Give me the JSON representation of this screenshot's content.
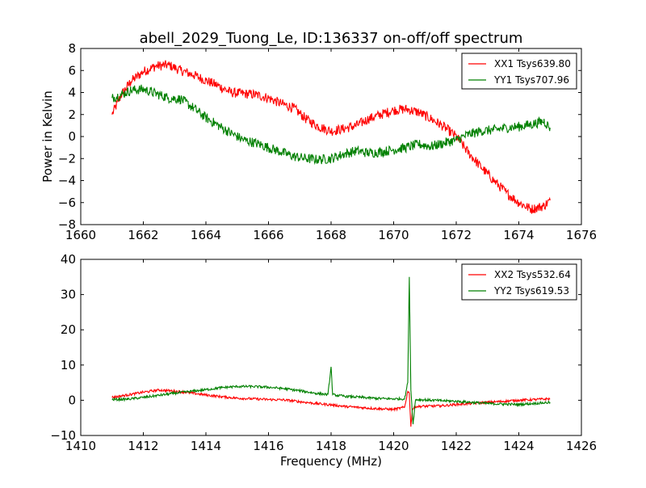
{
  "page": {
    "title": "abell_2029_Tuong_Le, ID:136337 on-off/off spectrum"
  },
  "chart_data": [
    {
      "type": "line",
      "title": "abell_2029_Tuong_Le, ID:136337 on-off/off spectrum",
      "xlabel": "",
      "ylabel": "Power in Kelvin",
      "xlim": [
        1660,
        1676
      ],
      "ylim": [
        -8,
        8
      ],
      "xticks": [
        1660,
        1662,
        1664,
        1666,
        1668,
        1670,
        1672,
        1674,
        1676
      ],
      "yticks": [
        -8,
        -6,
        -4,
        -2,
        0,
        2,
        4,
        6,
        8
      ],
      "grid": false,
      "legend_position": "top-right",
      "series": [
        {
          "name": "XX1 Tsys639.80",
          "color": "#ff0000",
          "x": [
            1661.0,
            1661.3,
            1661.6,
            1662.0,
            1662.4,
            1662.8,
            1663.2,
            1663.6,
            1664.0,
            1664.4,
            1664.8,
            1665.2,
            1665.6,
            1666.0,
            1666.4,
            1666.8,
            1667.2,
            1667.6,
            1668.0,
            1668.4,
            1668.8,
            1669.2,
            1669.6,
            1670.0,
            1670.4,
            1670.8,
            1671.2,
            1671.6,
            1672.0,
            1672.4,
            1672.8,
            1673.2,
            1673.6,
            1674.0,
            1674.4,
            1674.8,
            1675.0
          ],
          "y": [
            2.0,
            3.8,
            5.0,
            5.9,
            6.4,
            6.5,
            6.0,
            5.6,
            5.1,
            4.6,
            4.0,
            3.9,
            3.8,
            3.5,
            3.0,
            2.6,
            1.6,
            0.9,
            0.5,
            0.7,
            1.0,
            1.6,
            2.0,
            2.4,
            2.5,
            2.2,
            1.6,
            0.9,
            0.0,
            -1.5,
            -2.8,
            -4.0,
            -5.1,
            -6.0,
            -6.6,
            -6.3,
            -5.8
          ]
        },
        {
          "name": "YY1 Tsys707.96",
          "color": "#008000",
          "x": [
            1661.0,
            1661.3,
            1661.6,
            1662.0,
            1662.4,
            1662.8,
            1663.2,
            1663.6,
            1664.0,
            1664.4,
            1664.8,
            1665.2,
            1665.6,
            1666.0,
            1666.4,
            1666.8,
            1667.2,
            1667.6,
            1668.0,
            1668.4,
            1668.8,
            1669.2,
            1669.6,
            1670.0,
            1670.4,
            1670.8,
            1671.2,
            1671.6,
            1672.0,
            1672.4,
            1672.8,
            1673.2,
            1673.6,
            1674.0,
            1674.4,
            1674.8,
            1675.0
          ],
          "y": [
            3.5,
            3.8,
            4.2,
            4.3,
            3.9,
            3.5,
            3.4,
            2.6,
            1.7,
            1.0,
            0.3,
            -0.3,
            -0.6,
            -1.0,
            -1.4,
            -1.8,
            -2.0,
            -2.1,
            -2.0,
            -1.6,
            -1.3,
            -1.5,
            -1.4,
            -1.2,
            -1.0,
            -0.7,
            -0.9,
            -0.6,
            -0.3,
            0.2,
            0.5,
            0.6,
            0.8,
            0.9,
            1.1,
            1.4,
            0.8
          ]
        }
      ]
    },
    {
      "type": "line",
      "title": "",
      "xlabel": "Frequency (MHz)",
      "ylabel": "",
      "xlim": [
        1410,
        1426
      ],
      "ylim": [
        -10,
        40
      ],
      "xticks": [
        1410,
        1412,
        1414,
        1416,
        1418,
        1420,
        1422,
        1424,
        1426
      ],
      "yticks": [
        -10,
        0,
        10,
        20,
        30,
        40
      ],
      "grid": false,
      "legend_position": "top-right",
      "series": [
        {
          "name": "XX2 Tsys532.64",
          "color": "#ff0000",
          "x": [
            1411.0,
            1411.5,
            1412.0,
            1412.5,
            1413.0,
            1413.5,
            1414.0,
            1414.5,
            1415.0,
            1415.5,
            1416.0,
            1416.5,
            1417.0,
            1417.5,
            1418.0,
            1418.5,
            1419.0,
            1419.5,
            1420.0,
            1420.35,
            1420.45,
            1420.5,
            1420.55,
            1420.6,
            1420.7,
            1421.0,
            1421.5,
            1422.0,
            1422.5,
            1423.0,
            1423.5,
            1424.0,
            1424.5,
            1425.0
          ],
          "y": [
            0.8,
            1.5,
            2.3,
            2.9,
            2.6,
            2.1,
            1.5,
            1.0,
            0.6,
            0.4,
            0.2,
            0.1,
            -0.4,
            -0.9,
            -1.3,
            -1.8,
            -2.1,
            -2.4,
            -2.6,
            -2.0,
            2.5,
            2.0,
            -7.5,
            -2.5,
            -1.8,
            -1.7,
            -1.6,
            -1.2,
            -0.9,
            -0.6,
            -0.3,
            0.0,
            0.2,
            0.4
          ]
        },
        {
          "name": "YY2 Tsys619.53",
          "color": "#008000",
          "x": [
            1411.0,
            1411.5,
            1412.0,
            1412.5,
            1413.0,
            1413.5,
            1414.0,
            1414.5,
            1415.0,
            1415.5,
            1416.0,
            1416.5,
            1417.0,
            1417.5,
            1417.9,
            1418.0,
            1418.05,
            1418.15,
            1418.5,
            1419.0,
            1419.5,
            1420.0,
            1420.35,
            1420.45,
            1420.5,
            1420.55,
            1420.62,
            1420.7,
            1421.0,
            1421.5,
            1422.0,
            1422.5,
            1423.0,
            1423.5,
            1424.0,
            1424.5,
            1425.0
          ],
          "y": [
            0.2,
            0.3,
            0.8,
            1.4,
            2.0,
            2.5,
            3.0,
            3.6,
            3.9,
            3.9,
            3.7,
            3.3,
            2.7,
            2.0,
            1.6,
            9.5,
            1.6,
            1.4,
            1.1,
            0.8,
            0.5,
            0.4,
            0.4,
            5.0,
            35.0,
            3.0,
            -6.8,
            0.2,
            0.1,
            -0.1,
            -0.3,
            -0.6,
            -0.9,
            -1.1,
            -1.2,
            -0.9,
            -0.6
          ]
        }
      ]
    }
  ]
}
